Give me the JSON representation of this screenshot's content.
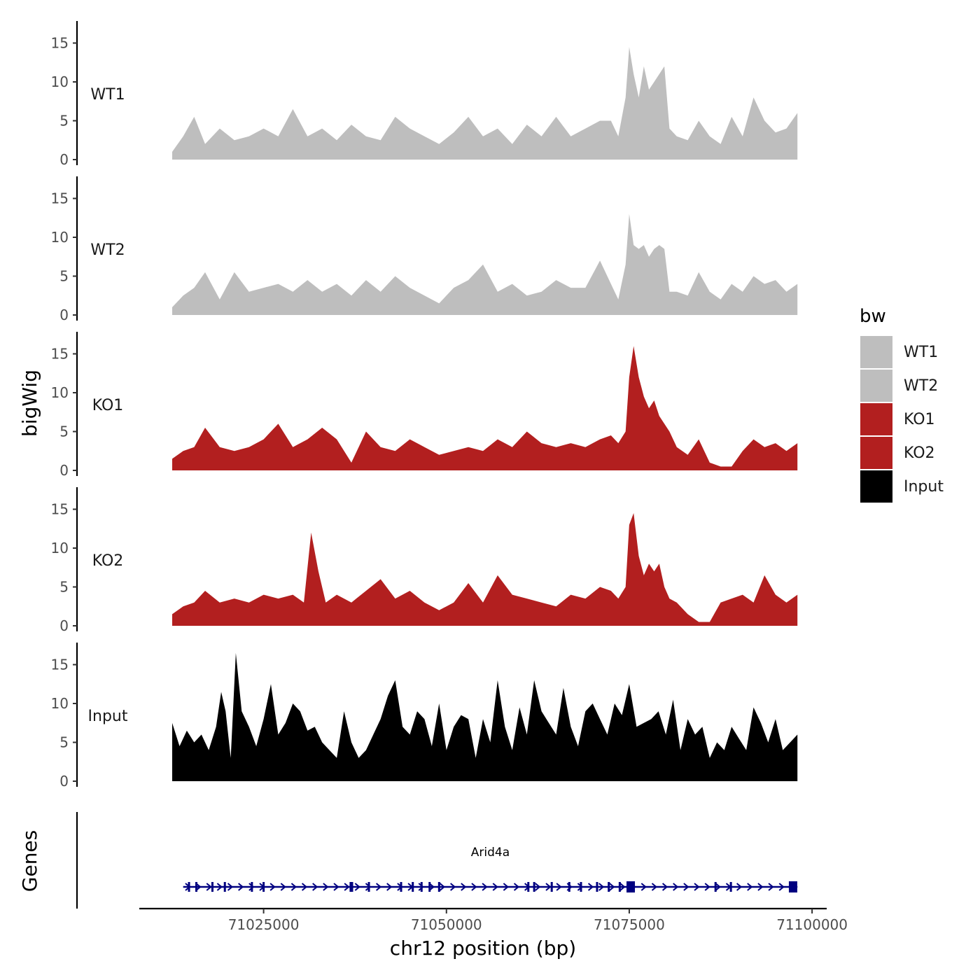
{
  "chart_data": {
    "type": "area",
    "panel_type": "genome-track",
    "ylabel": "bigWig",
    "xlabel": "chr12 position (bp)",
    "xlim": [
      71008000,
      71102000
    ],
    "x_ticks": [
      71025000,
      71050000,
      71075000,
      71100000
    ],
    "x_tick_labels": [
      "71025000",
      "71050000",
      "71075000",
      "71100000"
    ],
    "ylim": [
      0,
      17.5
    ],
    "y_ticks": [
      0,
      5,
      10,
      15
    ],
    "y_tick_labels": [
      "0",
      "5",
      "10",
      "15"
    ],
    "signal_range": [
      71012500,
      71098000
    ],
    "tracks": [
      {
        "name": "WT1",
        "color": "#bebebe",
        "x": [
          71012500,
          71014000,
          71015500,
          71017000,
          71019000,
          71021000,
          71023000,
          71025000,
          71027000,
          71029000,
          71031000,
          71033000,
          71035000,
          71037000,
          71039000,
          71041000,
          71043000,
          71045000,
          71047000,
          71049000,
          71051000,
          71053000,
          71055000,
          71057000,
          71059000,
          71061000,
          71063000,
          71065000,
          71067000,
          71069000,
          71071000,
          71072500,
          71073500,
          71074500,
          71075000,
          71075600,
          71076300,
          71077000,
          71077700,
          71078400,
          71079100,
          71079800,
          71080500,
          71081500,
          71083000,
          71084500,
          71086000,
          71087500,
          71089000,
          71090500,
          71092000,
          71093500,
          71095000,
          71096500,
          71098000
        ],
        "values": [
          1,
          3,
          5.5,
          2,
          4,
          2.5,
          3,
          4,
          3,
          6.5,
          3,
          4,
          2.5,
          4.5,
          3,
          2.5,
          5.5,
          4,
          3,
          2,
          3.5,
          5.5,
          3,
          4,
          2,
          4.5,
          3,
          5.5,
          3,
          4,
          5,
          5,
          3,
          8,
          14.5,
          11,
          8,
          12,
          9,
          10,
          11,
          12,
          4,
          3,
          2.5,
          5,
          3,
          2,
          5.5,
          3,
          8,
          5,
          3.5,
          4,
          6
        ]
      },
      {
        "name": "WT2",
        "color": "#bebebe",
        "x": [
          71012500,
          71014000,
          71015500,
          71017000,
          71019000,
          71021000,
          71023000,
          71025000,
          71027000,
          71029000,
          71031000,
          71033000,
          71035000,
          71037000,
          71039000,
          71041000,
          71043000,
          71045000,
          71047000,
          71049000,
          71051000,
          71053000,
          71055000,
          71057000,
          71059000,
          71061000,
          71063000,
          71065000,
          71067000,
          71069000,
          71071000,
          71072500,
          71073500,
          71074500,
          71075000,
          71075600,
          71076300,
          71077000,
          71077700,
          71078400,
          71079100,
          71079800,
          71080500,
          71081500,
          71083000,
          71084500,
          71086000,
          71087500,
          71089000,
          71090500,
          71092000,
          71093500,
          71095000,
          71096500,
          71098000
        ],
        "values": [
          1,
          2.5,
          3.5,
          5.5,
          2,
          5.5,
          3,
          3.5,
          4,
          3,
          4.5,
          3,
          4,
          2.5,
          4.5,
          3,
          5,
          3.5,
          2.5,
          1.5,
          3.5,
          4.5,
          6.5,
          3,
          4,
          2.5,
          3,
          4.5,
          3.5,
          3.5,
          7,
          4,
          2,
          6.5,
          13,
          9,
          8.5,
          9,
          7.5,
          8.5,
          9,
          8.5,
          3,
          3,
          2.5,
          5.5,
          3,
          2,
          4,
          3,
          5,
          4,
          4.5,
          3,
          4
        ]
      },
      {
        "name": "KO1",
        "color": "#b21f1f",
        "x": [
          71012500,
          71014000,
          71015500,
          71017000,
          71019000,
          71021000,
          71023000,
          71025000,
          71027000,
          71029000,
          71031000,
          71033000,
          71035000,
          71037000,
          71039000,
          71041000,
          71043000,
          71045000,
          71047000,
          71049000,
          71051000,
          71053000,
          71055000,
          71057000,
          71059000,
          71061000,
          71063000,
          71065000,
          71067000,
          71069000,
          71071000,
          71072500,
          71073500,
          71074500,
          71075000,
          71075600,
          71076300,
          71077000,
          71077700,
          71078400,
          71079100,
          71079800,
          71080500,
          71081500,
          71083000,
          71084500,
          71086000,
          71087500,
          71089000,
          71090500,
          71092000,
          71093500,
          71095000,
          71096500,
          71098000
        ],
        "values": [
          1.5,
          2.5,
          3,
          5.5,
          3,
          2.5,
          3,
          4,
          6,
          3,
          4,
          5.5,
          4,
          1,
          5,
          3,
          2.5,
          4,
          3,
          2,
          2.5,
          3,
          2.5,
          4,
          3,
          5,
          3.5,
          3,
          3.5,
          3,
          4,
          4.5,
          3.5,
          5,
          12,
          16,
          12,
          9.5,
          8,
          9,
          7,
          6,
          5,
          3,
          2,
          4,
          1,
          0.5,
          0.5,
          2.5,
          4,
          3,
          3.5,
          2.5,
          3.5
        ]
      },
      {
        "name": "KO2",
        "color": "#b21f1f",
        "x": [
          71012500,
          71014000,
          71015500,
          71017000,
          71019000,
          71021000,
          71023000,
          71025000,
          71027000,
          71029000,
          71030500,
          71031500,
          71032500,
          71033500,
          71035000,
          71037000,
          71039000,
          71041000,
          71043000,
          71045000,
          71047000,
          71049000,
          71051000,
          71053000,
          71055000,
          71057000,
          71059000,
          71061000,
          71063000,
          71065000,
          71067000,
          71069000,
          71071000,
          71072500,
          71073500,
          71074500,
          71075000,
          71075600,
          71076300,
          71077000,
          71077700,
          71078400,
          71079100,
          71079800,
          71080500,
          71081500,
          71083000,
          71084500,
          71086000,
          71087500,
          71089000,
          71090500,
          71092000,
          71093500,
          71095000,
          71096500,
          71098000
        ],
        "values": [
          1.5,
          2.5,
          3,
          4.5,
          3,
          3.5,
          3,
          4,
          3.5,
          4,
          3,
          12,
          7,
          3,
          4,
          3,
          4.5,
          6,
          3.5,
          4.5,
          3,
          2,
          3,
          5.5,
          3,
          6.5,
          4,
          3.5,
          3,
          2.5,
          4,
          3.5,
          5,
          4.5,
          3.5,
          5,
          13,
          14.5,
          9,
          6.5,
          8,
          7,
          8,
          5,
          3.5,
          3,
          1.5,
          0.5,
          0.5,
          3,
          3.5,
          4,
          3,
          6.5,
          4,
          3,
          4
        ]
      },
      {
        "name": "Input",
        "color": "#000000",
        "x": [
          71012500,
          71013500,
          71014500,
          71015500,
          71016500,
          71017500,
          71018500,
          71019200,
          71019800,
          71020500,
          71021200,
          71022000,
          71023000,
          71024000,
          71025000,
          71026000,
          71027000,
          71028000,
          71029000,
          71030000,
          71031000,
          71032000,
          71033000,
          71034000,
          71035000,
          71036000,
          71037000,
          71038000,
          71039000,
          71040000,
          71041000,
          71042000,
          71043000,
          71044000,
          71045000,
          71046000,
          71047000,
          71048000,
          71049000,
          71050000,
          71051000,
          71052000,
          71053000,
          71054000,
          71055000,
          71056000,
          71057000,
          71058000,
          71059000,
          71060000,
          71061000,
          71062000,
          71063000,
          71064000,
          71065000,
          71066000,
          71067000,
          71068000,
          71069000,
          71070000,
          71071000,
          71072000,
          71073000,
          71074000,
          71075000,
          71076000,
          71077000,
          71078000,
          71079000,
          71080000,
          71081000,
          71082000,
          71083000,
          71084000,
          71085000,
          71086000,
          71087000,
          71088000,
          71089000,
          71090000,
          71091000,
          71092000,
          71093000,
          71094000,
          71095000,
          71096000,
          71097000,
          71098000
        ],
        "values": [
          7.5,
          4.5,
          6.5,
          5,
          6,
          4,
          7,
          11.5,
          9,
          3,
          16.5,
          9,
          7,
          4.5,
          8,
          12.5,
          6,
          7.5,
          10,
          9,
          6.5,
          7,
          5,
          4,
          3,
          9,
          5,
          3,
          4,
          6,
          8,
          11,
          13,
          7,
          6,
          9,
          8,
          4.5,
          10,
          4,
          7,
          8.5,
          8,
          3,
          8,
          5,
          13,
          7,
          4,
          9.5,
          6,
          13,
          9,
          7.5,
          6,
          12,
          7,
          4.5,
          9,
          10,
          8,
          6,
          10,
          8.5,
          12.5,
          7,
          7.5,
          8,
          9,
          6,
          10.5,
          4,
          8,
          6,
          7,
          3,
          5,
          4,
          7,
          5.5,
          4,
          9.5,
          7.5,
          5,
          8,
          4,
          5,
          6
        ]
      }
    ],
    "genes_track": {
      "label": "Genes",
      "gene": {
        "name": "Arid4a",
        "start": 71014000,
        "end": 71098000,
        "strand": "+",
        "color": "#000080",
        "exons": [
          71014800,
          71015800,
          71018000,
          71019700,
          71023400,
          71025000,
          71036900,
          71037100,
          71039400,
          71043800,
          71045400,
          71046600,
          71047700,
          71049000,
          71061200,
          71062000,
          71064400,
          71066800,
          71068400,
          71070600,
          71072200,
          71073700,
          71086800,
          71088900
        ],
        "big_exons": [
          71075200,
          71097400
        ]
      }
    },
    "legend": {
      "title": "bw",
      "position": "right",
      "entries": [
        {
          "label": "WT1",
          "color": "#bebebe"
        },
        {
          "label": "WT2",
          "color": "#bebebe"
        },
        {
          "label": "KO1",
          "color": "#b21f1f"
        },
        {
          "label": "KO2",
          "color": "#b21f1f"
        },
        {
          "label": "Input",
          "color": "#000000"
        }
      ]
    }
  }
}
